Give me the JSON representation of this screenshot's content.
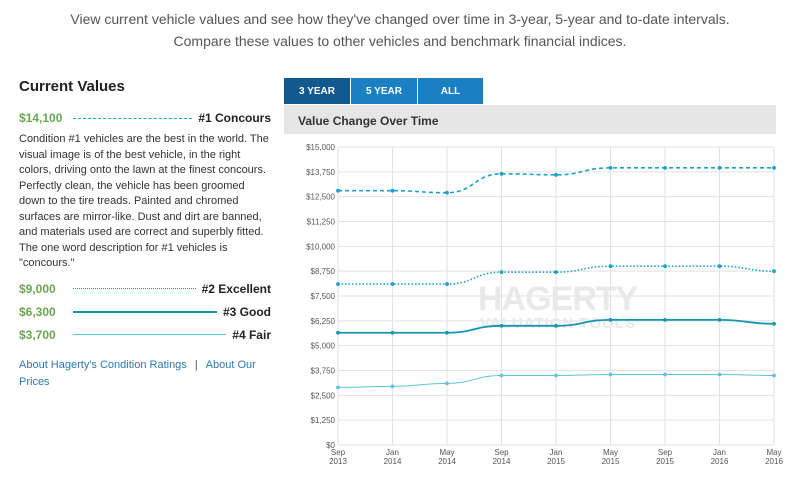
{
  "intro": {
    "line1": "View current vehicle values and see how they've changed over time in 3-year, 5-year and to-date intervals.",
    "line2": "Compare these values to other vehicles and benchmark financial indices."
  },
  "current_values": {
    "title": "Current Values",
    "conditions": [
      {
        "price": "$14,100",
        "label": "#1 Concours",
        "line_style": "dashed",
        "color": "#1ba3c6"
      },
      {
        "price": "$9,000",
        "label": "#2 Excellent",
        "line_style": "dotted",
        "color": "#1ba3c6"
      },
      {
        "price": "$6,300",
        "label": "#3 Good",
        "line_style": "solid",
        "color": "#1796b0"
      },
      {
        "price": "$3,700",
        "label": "#4 Fair",
        "line_style": "thin",
        "color": "#5fc4dc"
      }
    ],
    "description": "Condition #1 vehicles are the best in the world. The visual image is of the best vehicle, in the right colors, driving onto the lawn at the finest concours. Perfectly clean, the vehicle has been groomed down to the tire treads. Painted and chromed surfaces are mirror-like. Dust and dirt are banned, and materials used are correct and superbly fitted. The one word description for #1 vehicles is \"concours.\"",
    "links": {
      "ratings": "About Hagerty's Condition Ratings",
      "separator": "|",
      "prices": "About Our Prices"
    }
  },
  "tabs": [
    "3 YEAR",
    "5 YEAR",
    "ALL"
  ],
  "active_tab": "3 YEAR",
  "chart_header": "Value Change Over Time",
  "watermark": {
    "brand": "HAGERTY",
    "sub": "VALUATION TOOLS"
  },
  "chart_data": {
    "type": "line",
    "title": "Value Change Over Time",
    "xlabel": "",
    "ylabel": "",
    "ylim": [
      0,
      15000
    ],
    "y_ticks": [
      "$0",
      "$1,250",
      "$2,500",
      "$3,750",
      "$5,000",
      "$6,250",
      "$7,500",
      "$8,750",
      "$10,000",
      "$11,250",
      "$12,500",
      "$13,750",
      "$15,000"
    ],
    "categories": [
      "Sep 2013",
      "Jan 2014",
      "May 2014",
      "Sep 2014",
      "Jan 2015",
      "May 2015",
      "Sep 2015",
      "Jan 2016",
      "May 2016"
    ],
    "grid": true,
    "series": [
      {
        "name": "#1 Concours",
        "values": [
          12800,
          12800,
          12700,
          13650,
          13600,
          13950,
          13950,
          13950,
          13950
        ],
        "style": "dashed",
        "color": "#1ba3c6"
      },
      {
        "name": "#2 Excellent",
        "values": [
          8100,
          8100,
          8100,
          8700,
          8700,
          9000,
          9000,
          9000,
          8750
        ],
        "style": "dotted",
        "color": "#1ba3c6"
      },
      {
        "name": "#3 Good",
        "values": [
          5650,
          5650,
          5650,
          6000,
          6000,
          6300,
          6300,
          6300,
          6100
        ],
        "style": "solid",
        "color": "#1796b0"
      },
      {
        "name": "#4 Fair",
        "values": [
          2900,
          2950,
          3100,
          3500,
          3500,
          3550,
          3550,
          3550,
          3500
        ],
        "style": "thin",
        "color": "#5fc4dc"
      }
    ]
  }
}
